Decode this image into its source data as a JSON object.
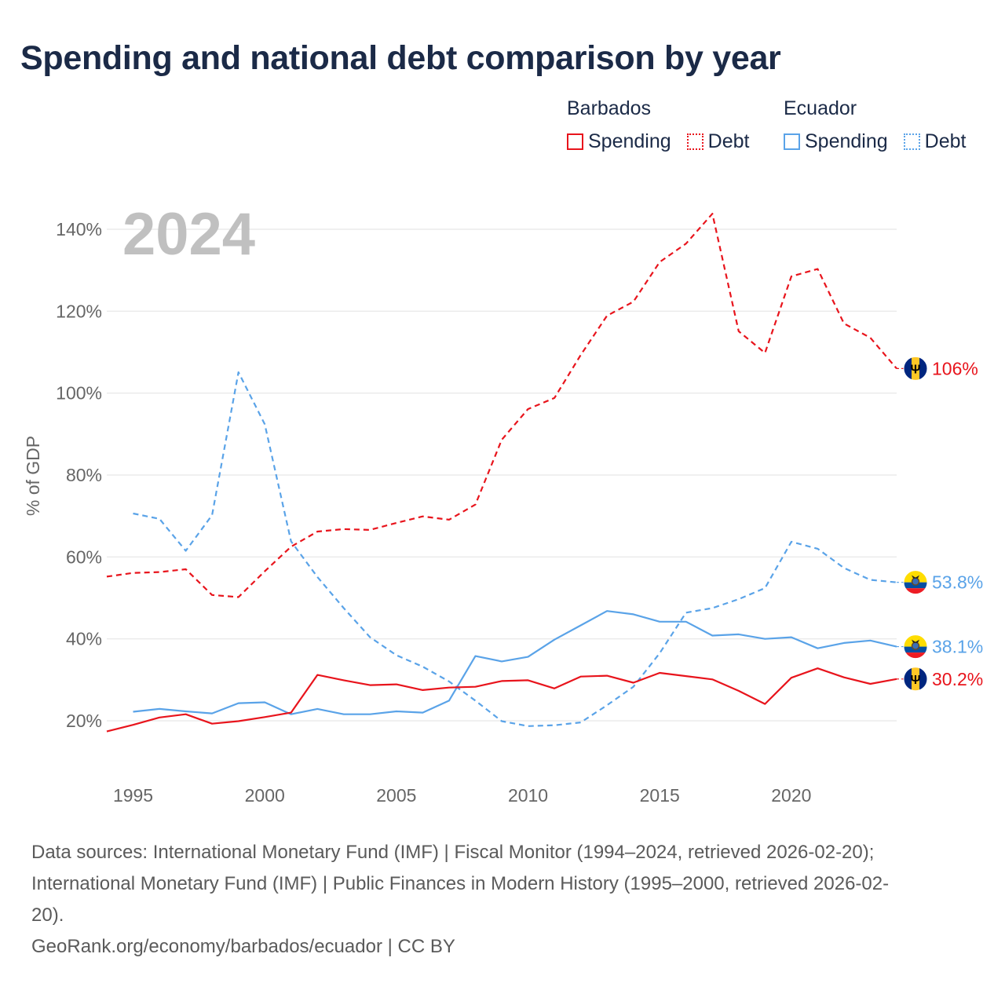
{
  "title": "Spending and national debt comparison by year",
  "legend": {
    "groups": [
      {
        "name": "Barbados",
        "color": "#e8141c",
        "items": [
          {
            "label": "Spending",
            "style": "solid"
          },
          {
            "label": "Debt",
            "style": "dotted"
          }
        ]
      },
      {
        "name": "Ecuador",
        "color": "#5aa3e8",
        "items": [
          {
            "label": "Spending",
            "style": "solid"
          },
          {
            "label": "Debt",
            "style": "dotted"
          }
        ]
      }
    ]
  },
  "chart_data": {
    "type": "line",
    "current_year_label": "2024",
    "ylabel": "% of GDP",
    "xlim": [
      1994,
      2024
    ],
    "ylim": [
      10,
      145
    ],
    "yticks": [
      20,
      40,
      60,
      80,
      100,
      120,
      140
    ],
    "ytick_labels": [
      "20%",
      "40%",
      "60%",
      "80%",
      "100%",
      "120%",
      "140%"
    ],
    "xticks": [
      1995,
      2000,
      2005,
      2010,
      2015,
      2020
    ],
    "xtick_labels": [
      "1995",
      "2000",
      "2005",
      "2010",
      "2015",
      "2020"
    ],
    "series": [
      {
        "name": "Barbados Debt",
        "country": "Barbados",
        "metric": "Debt",
        "color": "#e8141c",
        "dashed": true,
        "x": [
          1994,
          1995,
          1996,
          1997,
          1998,
          1999,
          2000,
          2001,
          2002,
          2003,
          2004,
          2005,
          2006,
          2007,
          2008,
          2009,
          2010,
          2011,
          2012,
          2013,
          2014,
          2015,
          2016,
          2017,
          2018,
          2019,
          2020,
          2021,
          2022,
          2023,
          2024
        ],
        "values": [
          55.2,
          56.1,
          56.3,
          57.0,
          50.7,
          50.2,
          56.5,
          62.5,
          66.2,
          66.8,
          66.6,
          68.3,
          69.9,
          69.1,
          72.8,
          88.6,
          96.1,
          98.8,
          109.3,
          118.9,
          122.3,
          132.0,
          136.5,
          143.8,
          115.1,
          109.8,
          128.5,
          130.3,
          117.0,
          113.5,
          106.0
        ],
        "end_label": "106%"
      },
      {
        "name": "Ecuador Debt",
        "country": "Ecuador",
        "metric": "Debt",
        "color": "#5aa3e8",
        "dashed": true,
        "x": [
          1995,
          1996,
          1997,
          1998,
          1999,
          2000,
          2001,
          2002,
          2003,
          2004,
          2005,
          2006,
          2007,
          2008,
          2009,
          2010,
          2011,
          2012,
          2013,
          2014,
          2015,
          2016,
          2017,
          2018,
          2019,
          2020,
          2021,
          2022,
          2023,
          2024
        ],
        "values": [
          70.6,
          69.3,
          61.5,
          70.2,
          105.1,
          92.4,
          63.8,
          55.1,
          47.5,
          40.4,
          36.0,
          33.2,
          29.6,
          24.9,
          19.9,
          18.7,
          18.9,
          19.6,
          23.8,
          28.3,
          36.5,
          46.4,
          47.5,
          49.7,
          52.4,
          63.7,
          62.0,
          57.3,
          54.4,
          53.8
        ],
        "end_label": "53.8%"
      },
      {
        "name": "Ecuador Spending",
        "country": "Ecuador",
        "metric": "Spending",
        "color": "#5aa3e8",
        "dashed": false,
        "x": [
          1995,
          1996,
          1997,
          1998,
          1999,
          2000,
          2001,
          2002,
          2003,
          2004,
          2005,
          2006,
          2007,
          2008,
          2009,
          2010,
          2011,
          2012,
          2013,
          2014,
          2015,
          2016,
          2017,
          2018,
          2019,
          2020,
          2021,
          2022,
          2023,
          2024
        ],
        "values": [
          22.2,
          22.9,
          22.3,
          21.8,
          24.3,
          24.5,
          21.6,
          22.9,
          21.6,
          21.6,
          22.3,
          22.0,
          24.9,
          35.8,
          34.5,
          35.6,
          39.8,
          43.3,
          46.8,
          46.0,
          44.2,
          44.2,
          40.8,
          41.1,
          40.0,
          40.4,
          37.7,
          39.0,
          39.6,
          38.1
        ],
        "end_label": "38.1%"
      },
      {
        "name": "Barbados Spending",
        "country": "Barbados",
        "metric": "Spending",
        "color": "#e8141c",
        "dashed": false,
        "x": [
          1994,
          1995,
          1996,
          1997,
          1998,
          1999,
          2000,
          2001,
          2002,
          2003,
          2004,
          2005,
          2006,
          2007,
          2008,
          2009,
          2010,
          2011,
          2012,
          2013,
          2014,
          2015,
          2016,
          2017,
          2018,
          2019,
          2020,
          2021,
          2022,
          2023,
          2024
        ],
        "values": [
          17.4,
          19.0,
          20.8,
          21.6,
          19.3,
          19.9,
          20.9,
          22.0,
          31.2,
          29.9,
          28.7,
          28.9,
          27.5,
          28.1,
          28.3,
          29.7,
          29.9,
          27.9,
          30.8,
          31.0,
          29.3,
          31.7,
          30.9,
          30.1,
          27.3,
          24.1,
          30.5,
          32.8,
          30.6,
          29.0,
          30.2
        ],
        "end_label": "30.2%"
      }
    ]
  },
  "sources": {
    "line1": "Data sources: International Monetary Fund (IMF) | Fiscal Monitor (1994–2024, retrieved 2026-02-20);",
    "line2": "International Monetary Fund (IMF) | Public Finances in Modern History (1995–2000, retrieved 2026-02-",
    "line3": "20).",
    "credit": "GeoRank.org/economy/barbados/ecuador | CC BY"
  }
}
